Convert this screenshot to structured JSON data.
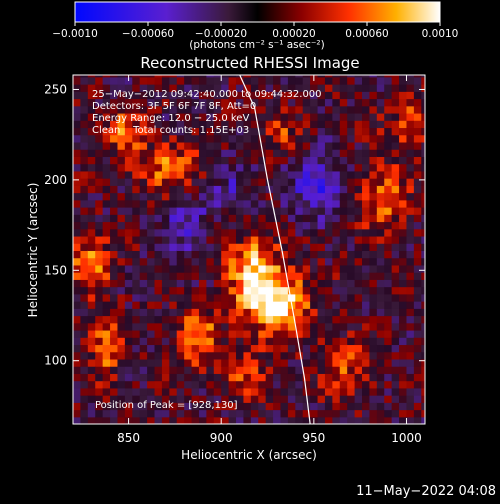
{
  "colorbar": {
    "ticks": [
      {
        "value": -0.001,
        "label": "−0.0010"
      },
      {
        "value": -0.0006,
        "label": "−0.00060"
      },
      {
        "value": -0.0002,
        "label": "−0.00020"
      },
      {
        "value": 0.0002,
        "label": "0.00020"
      },
      {
        "value": 0.0006,
        "label": "0.00060"
      },
      {
        "value": 0.001,
        "label": "0.0010"
      }
    ],
    "range": [
      -0.001,
      0.001
    ],
    "unit_label": "(photons cm⁻² s⁻¹ asec⁻²)"
  },
  "chart_data": {
    "type": "heatmap",
    "title": "Reconstructed RHESSI Image",
    "xlabel": "Heliocentric X (arcsec)",
    "ylabel": "Heliocentric Y (arcsec)",
    "xlim": [
      820,
      1010
    ],
    "ylim": [
      65,
      258
    ],
    "xticks": [
      850,
      900,
      950,
      1000
    ],
    "yticks": [
      100,
      150,
      200,
      250
    ],
    "annotations": [
      "25−May−2012 09:42:40.000 to 09:44:32.000",
      "Detectors: 3F 5F 6F 7F 8F, Att=0",
      "Energy Range: 12.0 − 25.0 keV",
      "Clean    Total counts: 1.15E+03"
    ],
    "peak": {
      "label": "Position of Peak = [928,130]",
      "x": 928,
      "y": 130
    },
    "limb": [
      [
        910,
        258
      ],
      [
        918,
        240
      ],
      [
        925,
        200
      ],
      [
        933,
        160
      ],
      [
        940,
        120
      ],
      [
        945,
        90
      ],
      [
        948,
        65
      ]
    ],
    "sources": [
      {
        "x": 928,
        "y": 130,
        "amp": 1.0,
        "sx": 12,
        "sy": 12
      },
      {
        "x": 915,
        "y": 150,
        "amp": 0.75,
        "sx": 10,
        "sy": 14
      },
      {
        "x": 828,
        "y": 152,
        "amp": 0.7,
        "sx": 8,
        "sy": 10
      },
      {
        "x": 835,
        "y": 105,
        "amp": 0.55,
        "sx": 6,
        "sy": 14
      },
      {
        "x": 885,
        "y": 112,
        "amp": 0.6,
        "sx": 8,
        "sy": 12
      },
      {
        "x": 870,
        "y": 205,
        "amp": 0.55,
        "sx": 12,
        "sy": 10
      },
      {
        "x": 845,
        "y": 225,
        "amp": 0.5,
        "sx": 8,
        "sy": 10
      },
      {
        "x": 985,
        "y": 188,
        "amp": 0.55,
        "sx": 10,
        "sy": 14
      },
      {
        "x": 1000,
        "y": 230,
        "amp": 0.45,
        "sx": 8,
        "sy": 10
      },
      {
        "x": 965,
        "y": 95,
        "amp": 0.4,
        "sx": 10,
        "sy": 12
      },
      {
        "x": 930,
        "y": 225,
        "amp": 0.35,
        "sx": 8,
        "sy": 8
      },
      {
        "x": 910,
        "y": 92,
        "amp": 0.4,
        "sx": 10,
        "sy": 10
      }
    ],
    "negative_regions": [
      {
        "x": 950,
        "y": 195,
        "amp": -0.6,
        "sx": 10,
        "sy": 12
      },
      {
        "x": 880,
        "y": 175,
        "amp": -0.4,
        "sx": 10,
        "sy": 12
      },
      {
        "x": 905,
        "y": 195,
        "amp": -0.35,
        "sx": 8,
        "sy": 10
      }
    ]
  },
  "footer": {
    "timestamp": "11−May−2022 04:08"
  }
}
